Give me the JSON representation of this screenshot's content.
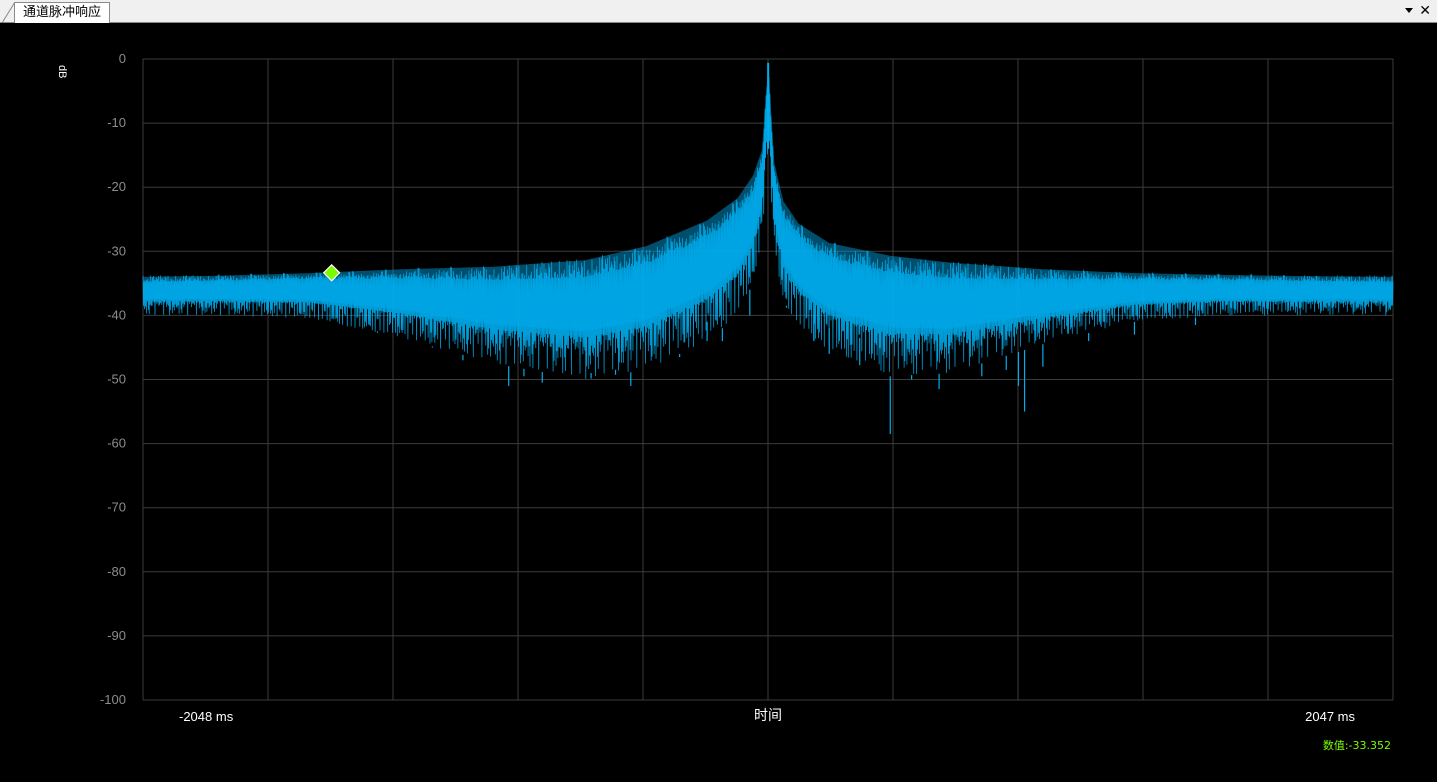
{
  "tab": {
    "title": "通道脉冲响应"
  },
  "chart_data": {
    "type": "line",
    "ylabel": "dB",
    "xlabel": "时间",
    "x_start_label": "-2048 ms",
    "x_end_label": "2047 ms",
    "x_range": [
      -2048,
      2047
    ],
    "ylim": [
      -100,
      0
    ],
    "y_ticks": [
      0,
      -10,
      -20,
      -30,
      -40,
      -50,
      -60,
      -70,
      -80,
      -90,
      -100
    ],
    "grid": true,
    "series_color": "#00aeef",
    "marker": {
      "x": -1430,
      "y": -33.352,
      "color": "#7cfc00"
    },
    "readout": "数值:-33.352",
    "envelope": {
      "x": [
        -2048,
        -1800,
        -1500,
        -1200,
        -900,
        -600,
        -400,
        -200,
        -100,
        -50,
        -20,
        0,
        20,
        50,
        100,
        200,
        400,
        600,
        900,
        1200,
        1500,
        1800,
        2047
      ],
      "upper": [
        -33.8,
        -33.6,
        -33.2,
        -32.6,
        -32.2,
        -31.2,
        -29.0,
        -25.0,
        -21.5,
        -18.0,
        -14.0,
        -0.6,
        -16.0,
        -22.0,
        -25.5,
        -28.5,
        -30.5,
        -31.6,
        -32.6,
        -33.2,
        -33.5,
        -33.7,
        -33.8
      ],
      "lower": [
        -40.0,
        -40.0,
        -40.5,
        -43.5,
        -47.5,
        -50.0,
        -48.5,
        -44.0,
        -40.0,
        -35.0,
        -28.0,
        -14.0,
        -30.0,
        -38.0,
        -42.0,
        -46.0,
        -49.5,
        -49.0,
        -44.5,
        -41.0,
        -40.0,
        -40.0,
        -40.0
      ]
    },
    "spikes": [
      {
        "x": -1400,
        "y": -41.5
      },
      {
        "x": -1280,
        "y": -42.5
      },
      {
        "x": -1100,
        "y": -45.0
      },
      {
        "x": -1000,
        "y": -47.0
      },
      {
        "x": -850,
        "y": -51.0
      },
      {
        "x": -800,
        "y": -49.5
      },
      {
        "x": -740,
        "y": -50.5
      },
      {
        "x": -580,
        "y": -49.0
      },
      {
        "x": -500,
        "y": -48.5
      },
      {
        "x": -450,
        "y": -51.0
      },
      {
        "x": -290,
        "y": -46.5
      },
      {
        "x": -200,
        "y": -41.0
      },
      {
        "x": -150,
        "y": -44.0
      },
      {
        "x": -60,
        "y": -40.0
      },
      {
        "x": 60,
        "y": -38.5
      },
      {
        "x": 150,
        "y": -40.0
      },
      {
        "x": 200,
        "y": -42.0
      },
      {
        "x": 300,
        "y": -43.5
      },
      {
        "x": 400,
        "y": -58.5
      },
      {
        "x": 470,
        "y": -50.0
      },
      {
        "x": 560,
        "y": -51.5
      },
      {
        "x": 700,
        "y": -49.5
      },
      {
        "x": 780,
        "y": -48.5
      },
      {
        "x": 820,
        "y": -51.0
      },
      {
        "x": 840,
        "y": -55.0
      },
      {
        "x": 900,
        "y": -48.0
      },
      {
        "x": 1050,
        "y": -44.0
      },
      {
        "x": 1200,
        "y": -43.0
      },
      {
        "x": 1400,
        "y": -41.5
      }
    ]
  }
}
